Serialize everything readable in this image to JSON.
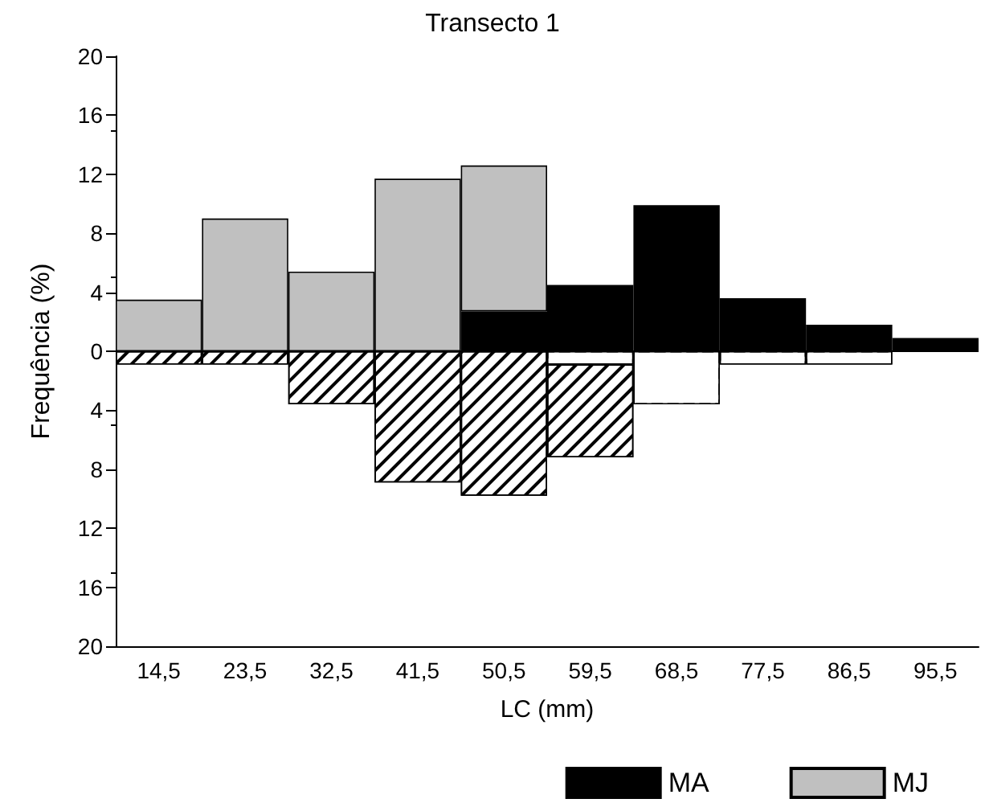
{
  "chart_data": {
    "type": "bar",
    "title": "Transecto 1",
    "xlabel": "LC (mm)",
    "ylabel": "Frequência (%)",
    "categories": [
      "14,5",
      "23,5",
      "32,5",
      "41,5",
      "50,5",
      "59,5",
      "68,5",
      "77,5",
      "86,5",
      "95,5"
    ],
    "stacked": true,
    "series": [
      {
        "name": "MA",
        "color": "#000000",
        "values": [
          null,
          null,
          null,
          null,
          2.7,
          4.5,
          9.9,
          3.6,
          1.8,
          0.9
        ]
      },
      {
        "name": "MJ",
        "color": "#c0c0c0",
        "values": [
          3.5,
          9.0,
          5.4,
          11.7,
          9.9,
          null,
          null,
          null,
          null,
          null
        ]
      },
      {
        "color": "#ffffff",
        "values": [
          null,
          null,
          null,
          null,
          null,
          -0.9,
          -3.6,
          -0.9,
          -0.9,
          null
        ]
      },
      {
        "color": "#000000",
        "values": [
          -0.9,
          -0.9,
          -3.6,
          -8.9,
          -9.8,
          -6.3,
          null,
          null,
          null,
          null
        ]
      }
    ],
    "ylim": [
      -20,
      20
    ],
    "yticks": [
      {
        "value": -20,
        "label": "20"
      },
      {
        "value": -16,
        "label": "16"
      },
      {
        "value": -12,
        "label": "12"
      },
      {
        "value": -8,
        "label": "8"
      },
      {
        "value": -4,
        "label": "4"
      },
      0,
      4,
      8,
      12,
      16,
      20
    ],
    "ref_lines": [
      {
        "axis": "y",
        "value": 0,
        "color": "#000000"
      }
    ],
    "grid": false,
    "legend": "bottom right"
  }
}
